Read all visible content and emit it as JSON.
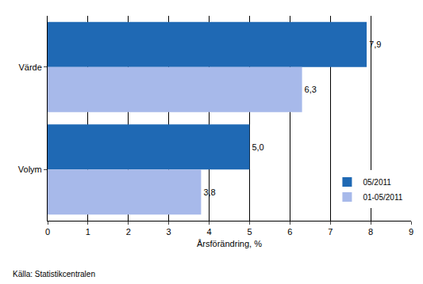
{
  "chart_data": {
    "type": "bar",
    "orientation": "horizontal",
    "categories": [
      "Värde",
      "Volym"
    ],
    "series": [
      {
        "name": "05/2011",
        "color": "#1f69b4",
        "values": [
          7.9,
          5.0
        ],
        "value_labels": [
          "7,9",
          "5,0"
        ]
      },
      {
        "name": "01-05/2011",
        "color": "#a7b9ea",
        "values": [
          6.3,
          3.8
        ],
        "value_labels": [
          "6,3",
          "3,8"
        ]
      }
    ],
    "x_label": "Årsförändring, %",
    "xlim": [
      0,
      9
    ],
    "xticks": [
      0,
      1,
      2,
      3,
      4,
      5,
      6,
      7,
      8,
      9
    ],
    "grid": true,
    "legend": "lower right",
    "data_labels": true,
    "annotations": [
      "Källa: Statistikcentralen"
    ]
  }
}
